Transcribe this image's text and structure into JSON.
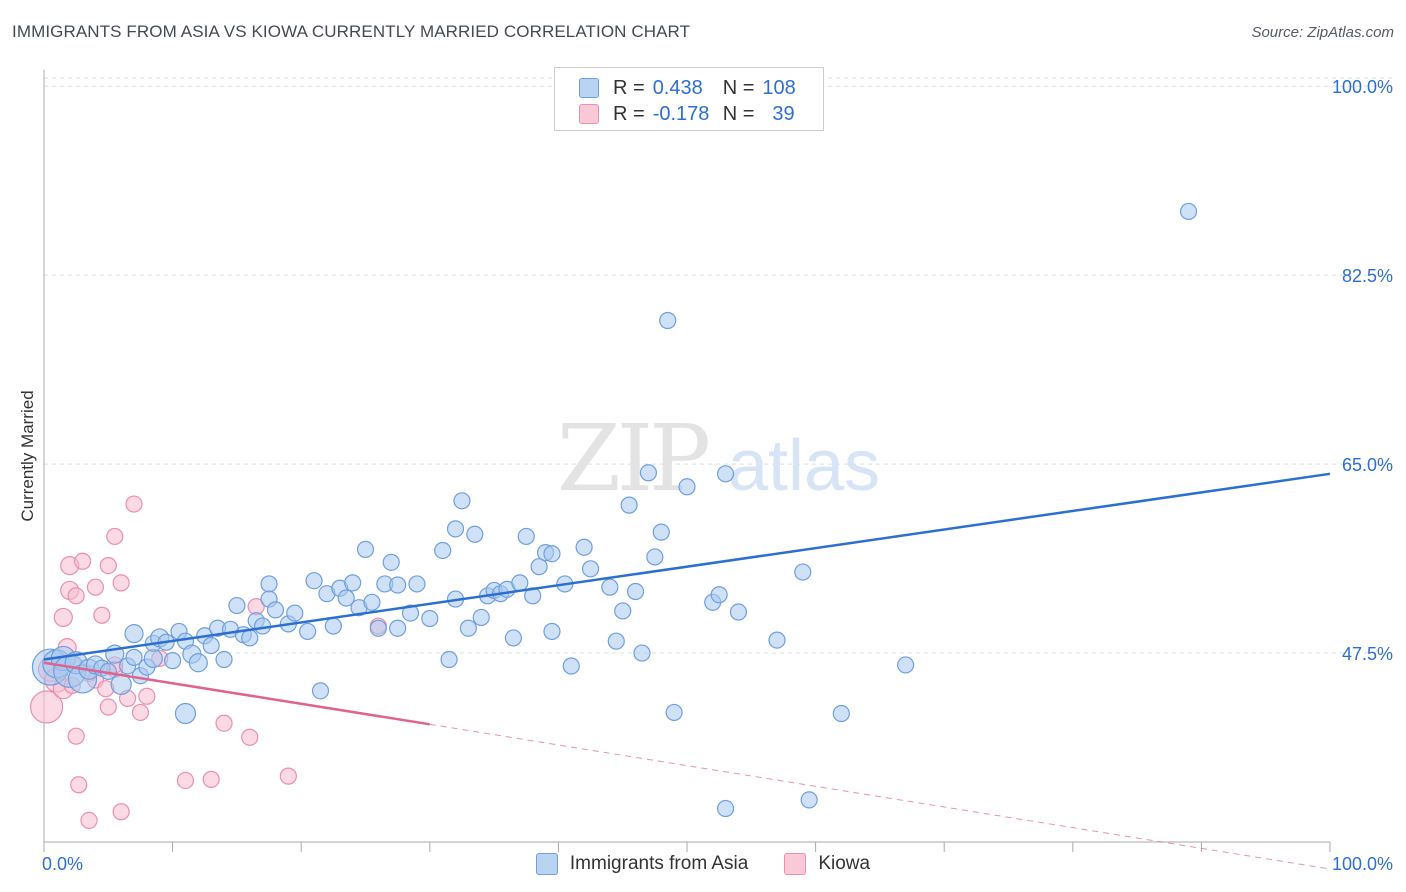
{
  "header": {
    "title": "IMMIGRANTS FROM ASIA VS KIOWA CURRENTLY MARRIED CORRELATION CHART",
    "source": "Source: ZipAtlas.com"
  },
  "watermark": {
    "zip": "ZIP",
    "atlas": "atlas"
  },
  "legend": {
    "rows": [
      {
        "r_label": "R =",
        "r_value": "0.438",
        "n_label": "N =",
        "n_value": "108"
      },
      {
        "r_label": "R =",
        "r_value": "-0.178",
        "n_label": "N =",
        "n_value": "39"
      }
    ]
  },
  "colors": {
    "asia_fill": "#a8c8f0",
    "asia_stroke": "#6f9fdc",
    "asia_line": "#2d6fd0",
    "kiowa_fill": "#f7bcd0",
    "kiowa_stroke": "#ea8fae",
    "kiowa_line": "#e0628f",
    "grid": "#dddddd",
    "tick_label": "#2d6fd0"
  },
  "chart_data": {
    "type": "scatter",
    "title": "IMMIGRANTS FROM ASIA VS KIOWA CURRENTLY MARRIED CORRELATION CHART",
    "xlabel": "",
    "ylabel": "Currently Married",
    "xlim": [
      0,
      100
    ],
    "ylim": [
      30,
      101.5
    ],
    "x_tick_labels": [
      "0.0%",
      "100.0%"
    ],
    "y_ticks": [
      47.5,
      65.0,
      82.5,
      100.0
    ],
    "y_tick_labels": [
      "47.5%",
      "65.0%",
      "82.5%",
      "100.0%"
    ],
    "grid": true,
    "legend_position": "top-center",
    "series": [
      {
        "name": "Immigrants from Asia",
        "r": 0.438,
        "n": 108,
        "trend": {
          "x0": 0,
          "y0": 46.9,
          "x1": 100,
          "y1": 64.1
        },
        "points": [
          [
            0.5,
            46.2,
            18
          ],
          [
            1.0,
            46.5,
            14
          ],
          [
            1.5,
            47.0,
            12
          ],
          [
            2.0,
            45.8,
            16
          ],
          [
            2.5,
            46.6,
            11
          ],
          [
            3.0,
            45.1,
            14
          ],
          [
            3.5,
            46.0,
            10
          ],
          [
            4.0,
            46.4,
            9
          ],
          [
            4.5,
            46.1,
            8
          ],
          [
            5.0,
            45.8,
            8
          ],
          [
            5.5,
            47.4,
            9
          ],
          [
            6.0,
            44.6,
            10
          ],
          [
            6.5,
            46.3,
            8
          ],
          [
            7.0,
            47.1,
            8
          ],
          [
            7.5,
            45.4,
            8
          ],
          [
            7.0,
            49.3,
            9
          ],
          [
            8.0,
            46.2,
            8
          ],
          [
            8.5,
            47.0,
            9
          ],
          [
            8.5,
            48.4,
            8
          ],
          [
            9.0,
            48.9,
            9
          ],
          [
            9.5,
            48.5,
            8
          ],
          [
            10.0,
            46.8,
            8
          ],
          [
            10.5,
            49.5,
            8
          ],
          [
            11.0,
            48.6,
            8
          ],
          [
            11.0,
            41.9,
            10
          ],
          [
            11.5,
            47.4,
            9
          ],
          [
            12.0,
            46.6,
            9
          ],
          [
            12.5,
            49.1,
            8
          ],
          [
            13.0,
            48.2,
            8
          ],
          [
            13.5,
            49.8,
            8
          ],
          [
            14.0,
            46.9,
            8
          ],
          [
            14.5,
            49.7,
            8
          ],
          [
            15.0,
            51.9,
            8
          ],
          [
            15.5,
            49.2,
            8
          ],
          [
            16.0,
            48.9,
            8
          ],
          [
            16.5,
            50.5,
            8
          ],
          [
            17.0,
            50.0,
            8
          ],
          [
            17.5,
            53.9,
            8
          ],
          [
            17.5,
            52.5,
            8
          ],
          [
            18.0,
            51.5,
            8
          ],
          [
            19.0,
            50.2,
            8
          ],
          [
            19.5,
            51.2,
            8
          ],
          [
            20.5,
            49.5,
            8
          ],
          [
            21.0,
            54.2,
            8
          ],
          [
            21.5,
            44.0,
            8
          ],
          [
            22.0,
            53.0,
            8
          ],
          [
            22.5,
            50.0,
            8
          ],
          [
            23.0,
            53.5,
            8
          ],
          [
            23.5,
            52.6,
            8
          ],
          [
            24.0,
            54.0,
            8
          ],
          [
            24.5,
            51.7,
            8
          ],
          [
            25.0,
            57.1,
            8
          ],
          [
            25.5,
            52.2,
            8
          ],
          [
            26.0,
            49.8,
            8
          ],
          [
            26.5,
            53.9,
            8
          ],
          [
            27.0,
            55.9,
            8
          ],
          [
            27.5,
            53.8,
            8
          ],
          [
            27.5,
            49.8,
            8
          ],
          [
            28.5,
            51.2,
            8
          ],
          [
            29.0,
            53.9,
            8
          ],
          [
            30.0,
            50.7,
            8
          ],
          [
            31.0,
            57.0,
            8
          ],
          [
            31.5,
            46.9,
            8
          ],
          [
            32.0,
            52.5,
            8
          ],
          [
            32.5,
            61.6,
            8
          ],
          [
            33.0,
            49.8,
            8
          ],
          [
            33.5,
            58.5,
            8
          ],
          [
            34.0,
            50.8,
            8
          ],
          [
            34.5,
            52.8,
            8
          ],
          [
            35.0,
            53.3,
            8
          ],
          [
            35.5,
            53.0,
            8
          ],
          [
            36.0,
            53.4,
            8
          ],
          [
            36.5,
            48.9,
            8
          ],
          [
            37.0,
            54.0,
            8
          ],
          [
            37.5,
            58.3,
            8
          ],
          [
            38.0,
            52.8,
            8
          ],
          [
            38.5,
            55.5,
            8
          ],
          [
            39.0,
            56.8,
            8
          ],
          [
            39.5,
            49.5,
            8
          ],
          [
            39.5,
            56.7,
            8
          ],
          [
            40.5,
            53.9,
            8
          ],
          [
            41.0,
            46.3,
            8
          ],
          [
            42.0,
            57.3,
            8
          ],
          [
            42.5,
            55.3,
            8
          ],
          [
            44.0,
            53.6,
            8
          ],
          [
            44.5,
            48.6,
            8
          ],
          [
            45.0,
            51.4,
            8
          ],
          [
            45.5,
            61.2,
            8
          ],
          [
            46.0,
            53.2,
            8
          ],
          [
            46.5,
            47.5,
            8
          ],
          [
            47.0,
            64.2,
            8
          ],
          [
            47.5,
            56.4,
            8
          ],
          [
            48.0,
            58.7,
            8
          ],
          [
            48.5,
            78.3,
            8
          ],
          [
            49.0,
            42.0,
            8
          ],
          [
            50.0,
            62.9,
            8
          ],
          [
            52.0,
            52.2,
            8
          ],
          [
            52.5,
            52.9,
            8
          ],
          [
            53.0,
            64.1,
            8
          ],
          [
            54.0,
            51.3,
            8
          ],
          [
            53.0,
            33.1,
            8
          ],
          [
            57.0,
            48.7,
            8
          ],
          [
            59.0,
            55.0,
            8
          ],
          [
            59.5,
            33.9,
            8
          ],
          [
            62.0,
            41.9,
            8
          ],
          [
            67.0,
            46.4,
            8
          ],
          [
            89.0,
            88.4,
            8
          ],
          [
            32.0,
            59.0,
            8
          ]
        ]
      },
      {
        "name": "Kiowa",
        "r": -0.178,
        "n": 39,
        "trend": {
          "x0": 0,
          "y0": 46.6,
          "x1": 30,
          "y1": 40.9
        },
        "trend_dashed": {
          "x0": 30,
          "y0": 40.9,
          "x1": 100,
          "y1": 27.5
        },
        "points": [
          [
            0.2,
            42.5,
            16
          ],
          [
            0.5,
            46.0,
            12
          ],
          [
            1.0,
            45.0,
            12
          ],
          [
            1.5,
            44.2,
            10
          ],
          [
            1.5,
            50.8,
            9
          ],
          [
            1.8,
            48.0,
            9
          ],
          [
            2.0,
            55.6,
            9
          ],
          [
            2.0,
            53.3,
            9
          ],
          [
            2.2,
            44.5,
            8
          ],
          [
            2.3,
            46.5,
            8
          ],
          [
            2.5,
            52.8,
            8
          ],
          [
            2.5,
            39.8,
            8
          ],
          [
            2.7,
            35.3,
            8
          ],
          [
            3.0,
            56.0,
            8
          ],
          [
            3.5,
            45.6,
            8
          ],
          [
            3.5,
            32.0,
            8
          ],
          [
            4.0,
            45.0,
            8
          ],
          [
            4.0,
            53.6,
            8
          ],
          [
            4.5,
            51.0,
            8
          ],
          [
            4.8,
            44.2,
            8
          ],
          [
            5.0,
            55.6,
            8
          ],
          [
            5.5,
            46.0,
            8
          ],
          [
            5.5,
            46.4,
            8
          ],
          [
            5.5,
            58.3,
            8
          ],
          [
            5.0,
            42.5,
            8
          ],
          [
            6.0,
            54.0,
            8
          ],
          [
            6.0,
            32.8,
            8
          ],
          [
            6.5,
            43.3,
            8
          ],
          [
            7.0,
            61.3,
            8
          ],
          [
            7.5,
            42.0,
            8
          ],
          [
            8.0,
            43.5,
            8
          ],
          [
            9.0,
            47.0,
            8
          ],
          [
            11.0,
            35.7,
            8
          ],
          [
            13.0,
            35.8,
            8
          ],
          [
            14.0,
            41.0,
            8
          ],
          [
            16.0,
            39.7,
            8
          ],
          [
            16.5,
            51.8,
            8
          ],
          [
            19.0,
            36.1,
            8
          ],
          [
            26.0,
            50.0,
            8
          ]
        ]
      }
    ]
  }
}
